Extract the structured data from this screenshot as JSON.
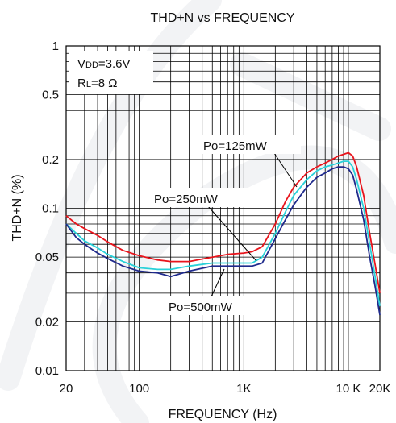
{
  "chart_data": {
    "type": "line",
    "title": "THD+N vs FREQUENCY",
    "xlabel": "FREQUENCY (Hz)",
    "ylabel": "THD+N (%)",
    "x_scale": "log",
    "y_scale": "log",
    "xlim": [
      20,
      20000
    ],
    "ylim": [
      0.01,
      1
    ],
    "grid": true,
    "x_ticks": [
      {
        "value": 20,
        "label": "20"
      },
      {
        "value": 100,
        "label": "100"
      },
      {
        "value": 1000,
        "label": "1K"
      },
      {
        "value": 10000,
        "label": "10 K"
      },
      {
        "value": 20000,
        "label": "20K"
      }
    ],
    "y_ticks": [
      {
        "value": 1,
        "label": "1"
      },
      {
        "value": 0.5,
        "label": "0.5"
      },
      {
        "value": 0.2,
        "label": "0.2"
      },
      {
        "value": 0.1,
        "label": "0.1"
      },
      {
        "value": 0.05,
        "label": "0.05"
      },
      {
        "value": 0.02,
        "label": "0.02"
      },
      {
        "value": 0.01,
        "label": "0.01"
      }
    ],
    "conditions": {
      "vdd": {
        "main": "V",
        "sub": "DD",
        "rest": "=3.6V"
      },
      "rl": {
        "main": "R",
        "sub": "L",
        "rest": "=8 Ω"
      }
    },
    "series": [
      {
        "name": "Po=125mW",
        "color": "#e8141c",
        "x": [
          20,
          25,
          30,
          40,
          50,
          70,
          100,
          150,
          200,
          300,
          500,
          700,
          1000,
          1200,
          1500,
          2000,
          2500,
          3000,
          4000,
          5000,
          6000,
          7000,
          8000,
          9000,
          10000,
          11000,
          12000,
          14000,
          16000,
          18000,
          20000
        ],
        "y": [
          0.09,
          0.08,
          0.075,
          0.068,
          0.062,
          0.055,
          0.051,
          0.048,
          0.047,
          0.047,
          0.05,
          0.052,
          0.053,
          0.054,
          0.058,
          0.08,
          0.11,
          0.135,
          0.165,
          0.18,
          0.19,
          0.2,
          0.21,
          0.215,
          0.22,
          0.21,
          0.18,
          0.12,
          0.07,
          0.045,
          0.03
        ]
      },
      {
        "name": "Po=250mW",
        "color": "#29d1d9",
        "x": [
          20,
          25,
          30,
          40,
          50,
          70,
          100,
          150,
          200,
          300,
          500,
          700,
          1000,
          1200,
          1500,
          2000,
          2500,
          3000,
          4000,
          5000,
          6000,
          7000,
          8000,
          9000,
          10000,
          11000,
          12000,
          14000,
          16000,
          18000,
          20000
        ],
        "y": [
          0.08,
          0.07,
          0.063,
          0.057,
          0.052,
          0.047,
          0.043,
          0.042,
          0.042,
          0.044,
          0.046,
          0.046,
          0.046,
          0.046,
          0.05,
          0.07,
          0.095,
          0.12,
          0.15,
          0.17,
          0.18,
          0.185,
          0.19,
          0.195,
          0.195,
          0.18,
          0.15,
          0.1,
          0.06,
          0.038,
          0.025
        ]
      },
      {
        "name": "Po=500mW",
        "color": "#1f2a8c",
        "x": [
          20,
          25,
          30,
          40,
          50,
          70,
          100,
          150,
          200,
          300,
          500,
          700,
          1000,
          1200,
          1500,
          2000,
          2500,
          3000,
          4000,
          5000,
          6000,
          7000,
          8000,
          9000,
          10000,
          11000,
          12000,
          14000,
          16000,
          18000,
          20000
        ],
        "y": [
          0.08,
          0.066,
          0.06,
          0.053,
          0.049,
          0.044,
          0.041,
          0.04,
          0.038,
          0.041,
          0.044,
          0.044,
          0.044,
          0.044,
          0.046,
          0.065,
          0.085,
          0.105,
          0.135,
          0.155,
          0.165,
          0.175,
          0.18,
          0.18,
          0.175,
          0.16,
          0.13,
          0.085,
          0.05,
          0.033,
          0.022
        ]
      }
    ]
  }
}
